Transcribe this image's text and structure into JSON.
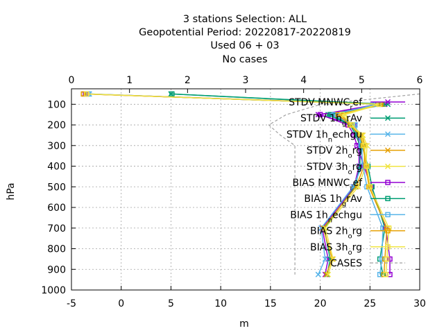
{
  "chart_data": {
    "type": "line",
    "title_lines": [
      "3 stations Selection: ALL",
      "Geopotential  Period: 20220817-20220819",
      "Used  06 + 03",
      "No cases"
    ],
    "xlabel": "m",
    "ylabel": "hPa",
    "xlim": [
      -5,
      30
    ],
    "x2lim": [
      0,
      6
    ],
    "ylim": [
      1000,
      25
    ],
    "x_ticks": [
      "-5",
      "0",
      "5",
      "10",
      "15",
      "20",
      "25",
      "30"
    ],
    "x2_ticks": [
      "0",
      "1",
      "2",
      "3",
      "4",
      "5",
      "6"
    ],
    "y_ticks": [
      "100",
      "200",
      "300",
      "400",
      "500",
      "600",
      "700",
      "800",
      "900",
      "1000"
    ],
    "grid": true,
    "legend_position": "top-right",
    "levels": [
      50,
      100,
      150,
      200,
      250,
      300,
      400,
      500,
      700,
      850,
      925
    ],
    "series": [
      {
        "name": "STDV MNWC_ref",
        "name_parts": [
          [
            "STDV MNWC",
            ""
          ],
          [
            "r",
            "sub"
          ],
          [
            "ef",
            ""
          ]
        ],
        "color": "#9400d3",
        "marker": "x",
        "x": [
          -3.5,
          26.5,
          19.8,
          23.5,
          23.8,
          23.9,
          23.9,
          23.4,
          20.2,
          20.8,
          20.5
        ]
      },
      {
        "name": "STDV 1h_grAv",
        "name_parts": [
          [
            "STDV 1h",
            ""
          ],
          [
            "g",
            "sub"
          ],
          [
            "rAv",
            ""
          ]
        ],
        "color": "#009e73",
        "marker": "x",
        "x": [
          5.0,
          26.8,
          20.8,
          23.0,
          23.6,
          24.0,
          24.0,
          23.5,
          20.4,
          21.0,
          20.7
        ]
      },
      {
        "name": "STDV 1h_nechgu",
        "name_parts": [
          [
            "STDV 1h",
            ""
          ],
          [
            "n",
            "sub"
          ],
          [
            "echgu",
            ""
          ]
        ],
        "color": "#56b4e9",
        "marker": "x",
        "x": [
          -3.2,
          25.5,
          21.2,
          23.4,
          23.9,
          24.2,
          24.2,
          23.3,
          20.1,
          20.5,
          19.8
        ]
      },
      {
        "name": "STDV 2h_org",
        "name_parts": [
          [
            "STDV 2h",
            ""
          ],
          [
            "o",
            "sub"
          ],
          [
            "rg",
            ""
          ]
        ],
        "color": "#e69f00",
        "marker": "x",
        "x": [
          -3.7,
          26.3,
          22.0,
          23.2,
          24.2,
          24.5,
          24.4,
          23.6,
          20.3,
          21.2,
          20.6
        ]
      },
      {
        "name": "STDV 3h_org",
        "name_parts": [
          [
            "STDV 3h",
            ""
          ],
          [
            "o",
            "sub"
          ],
          [
            "rg",
            ""
          ]
        ],
        "color": "#f0e442",
        "marker": "x",
        "x": [
          -3.4,
          26.0,
          22.5,
          23.1,
          24.3,
          24.7,
          24.6,
          23.8,
          20.5,
          21.3,
          20.8
        ]
      },
      {
        "name": "BIAS MNWC_ref",
        "name_parts": [
          [
            "BIAS MNWC",
            ""
          ],
          [
            "r",
            "sub"
          ],
          [
            "ef",
            ""
          ]
        ],
        "color": "#9400d3",
        "marker": "square",
        "x": [
          -3.6,
          25.8,
          20.0,
          22.8,
          23.4,
          23.7,
          24.4,
          25.1,
          26.6,
          27.0,
          27.0
        ]
      },
      {
        "name": "BIAS 1h_grAv",
        "name_parts": [
          [
            "BIAS 1h",
            ""
          ],
          [
            "g",
            "sub"
          ],
          [
            "rAv",
            ""
          ]
        ],
        "color": "#009e73",
        "marker": "square",
        "x": [
          5.1,
          26.2,
          21.0,
          23.1,
          23.8,
          24.2,
          24.8,
          25.2,
          26.5,
          26.0,
          26.3
        ]
      },
      {
        "name": "BIAS 1h_nechgu",
        "name_parts": [
          [
            "BIAS 1h",
            ""
          ],
          [
            "n",
            "sub"
          ],
          [
            "echgu",
            ""
          ]
        ],
        "color": "#56b4e9",
        "marker": "square",
        "x": [
          -3.3,
          25.6,
          21.4,
          23.5,
          23.9,
          24.1,
          24.3,
          24.7,
          26.3,
          26.2,
          26.0
        ]
      },
      {
        "name": "BIAS 2h_org",
        "name_parts": [
          [
            "BIAS 2h",
            ""
          ],
          [
            "o",
            "sub"
          ],
          [
            "rg",
            ""
          ]
        ],
        "color": "#e69f00",
        "marker": "square",
        "x": [
          -3.8,
          26.1,
          21.8,
          23.0,
          24.0,
          24.3,
          24.6,
          24.9,
          26.7,
          26.5,
          26.4
        ]
      },
      {
        "name": "BIAS 3h_org",
        "name_parts": [
          [
            "BIAS 3h",
            ""
          ],
          [
            "o",
            "sub"
          ],
          [
            "rg",
            ""
          ]
        ],
        "color": "#f0e442",
        "marker": "square",
        "x": [
          -3.5,
          25.9,
          22.2,
          23.2,
          24.1,
          24.4,
          24.7,
          25.0,
          26.9,
          26.7,
          26.6
        ]
      },
      {
        "name": "CASES",
        "name_parts": [
          [
            "CASES",
            ""
          ]
        ],
        "color": "#a0a0a0",
        "axis": "x2",
        "dash": true,
        "x": [
          6.0,
          4.3,
          3.7,
          3.4,
          3.6,
          3.85,
          3.85,
          3.85,
          3.85,
          3.85,
          3.85
        ]
      }
    ]
  }
}
